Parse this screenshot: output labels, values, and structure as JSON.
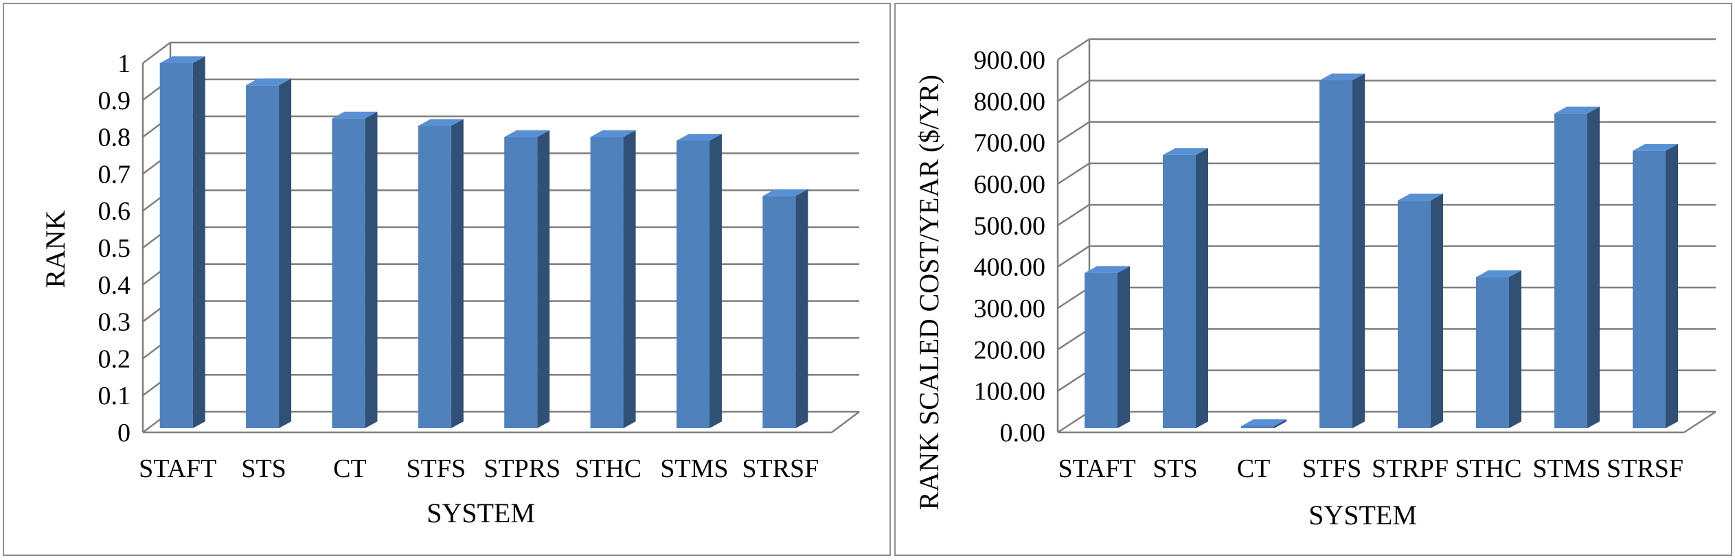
{
  "chart_data": [
    {
      "type": "bar",
      "xlabel": "SYSTEM",
      "ylabel": "RANK",
      "categories": [
        "STAFT",
        "STS",
        "CT",
        "STFS",
        "STPRS",
        "STHC",
        "STMS",
        "STRSF"
      ],
      "values": [
        1.0,
        0.94,
        0.85,
        0.83,
        0.8,
        0.8,
        0.79,
        0.64
      ],
      "ylim": [
        0,
        1
      ],
      "yticks": [
        "0",
        "0.1",
        "0.2",
        "0.3",
        "0.4",
        "0.5",
        "0.6",
        "0.7",
        "0.8",
        "0.9",
        "1"
      ],
      "grid": true,
      "style": "3d-column",
      "bar_color": "#4f81bd"
    },
    {
      "type": "bar",
      "xlabel": "SYSTEM",
      "ylabel": "RANK SCALED COST/YEAR ($/YR)",
      "categories": [
        "STAFT",
        "STS",
        "CT",
        "STFS",
        "STRPF",
        "STHC",
        "STMS",
        "STRSF"
      ],
      "values": [
        385,
        670,
        15,
        850,
        560,
        375,
        770,
        680
      ],
      "ylim": [
        0,
        900
      ],
      "yticks": [
        "0.00",
        "100.00",
        "200.00",
        "300.00",
        "400.00",
        "500.00",
        "600.00",
        "700.00",
        "800.00",
        "900.00"
      ],
      "grid": true,
      "style": "3d-column",
      "bar_color": "#4f81bd"
    }
  ]
}
